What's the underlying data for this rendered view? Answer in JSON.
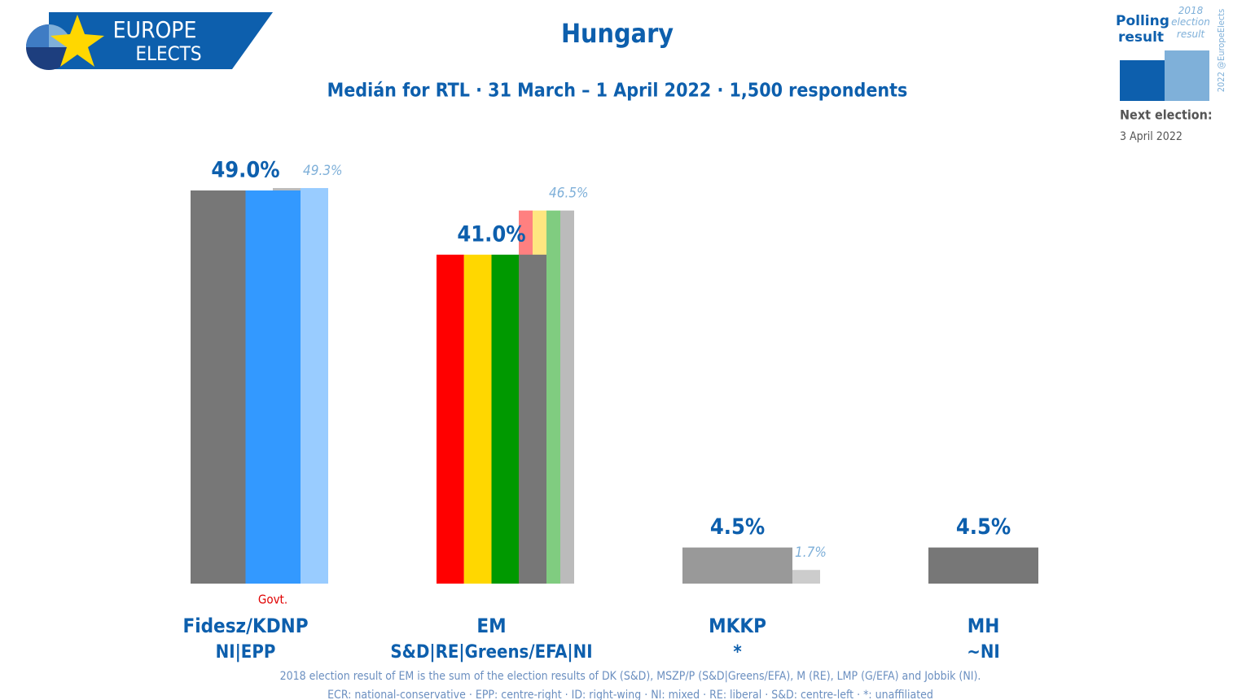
{
  "logo": {
    "line1": "EUROPE",
    "line2": "ELECTS"
  },
  "chart_data": {
    "type": "bar",
    "title": "Hungary",
    "subtitle": "Medián for RTL · 31 March – 1 April 2022 · 1,500 respondents",
    "categories": [
      "Fidesz/KDNP",
      "EM",
      "MKKP",
      "MH"
    ],
    "affiliations": [
      "NI|EPP",
      "S&D|RE|Greens/EFA|NI",
      "*",
      "~NI"
    ],
    "category_notes": [
      "Govt.",
      null,
      null,
      null
    ],
    "series": [
      {
        "name": "Polling result",
        "color": "#0d5fad",
        "values": [
          49.0,
          41.0,
          4.5,
          4.5
        ],
        "value_labels": [
          "49.0%",
          "41.0%",
          "4.5%",
          "4.5%"
        ],
        "stripe_colors": [
          [
            "#777777",
            "#3399ff"
          ],
          [
            "#ff0000",
            "#ffd700",
            "#009900",
            "#777777"
          ],
          [
            "#999999"
          ],
          [
            "#777777"
          ]
        ]
      },
      {
        "name": "2018 election result",
        "color": "#7fb0d9",
        "values": [
          49.3,
          46.5,
          1.7,
          null
        ],
        "value_labels": [
          "49.3%",
          "46.5%",
          "1.7%",
          null
        ],
        "stripe_colors": [
          [
            "#bbbbbb",
            "#99ccff"
          ],
          [
            "#ff8080",
            "#ffe680",
            "#80cc80",
            "#bbbbbb"
          ],
          [
            "#cccccc"
          ],
          null
        ]
      }
    ],
    "footnotes": [
      "2018 election result of EM is the sum of the election results of DK (S&D), MSZP/P (S&D|Greens/EFA), M (RE), LMP (G/EFA) and Jobbik (NI).",
      "ECR: national-conservative · EPP: centre-right · ID: right-wing · NI: mixed · RE: liberal · S&D: centre-left · *: unaffiliated"
    ],
    "next_election_label": "Next election:",
    "next_election": "3 April 2022",
    "credit": "2022 @EuropeElects"
  }
}
